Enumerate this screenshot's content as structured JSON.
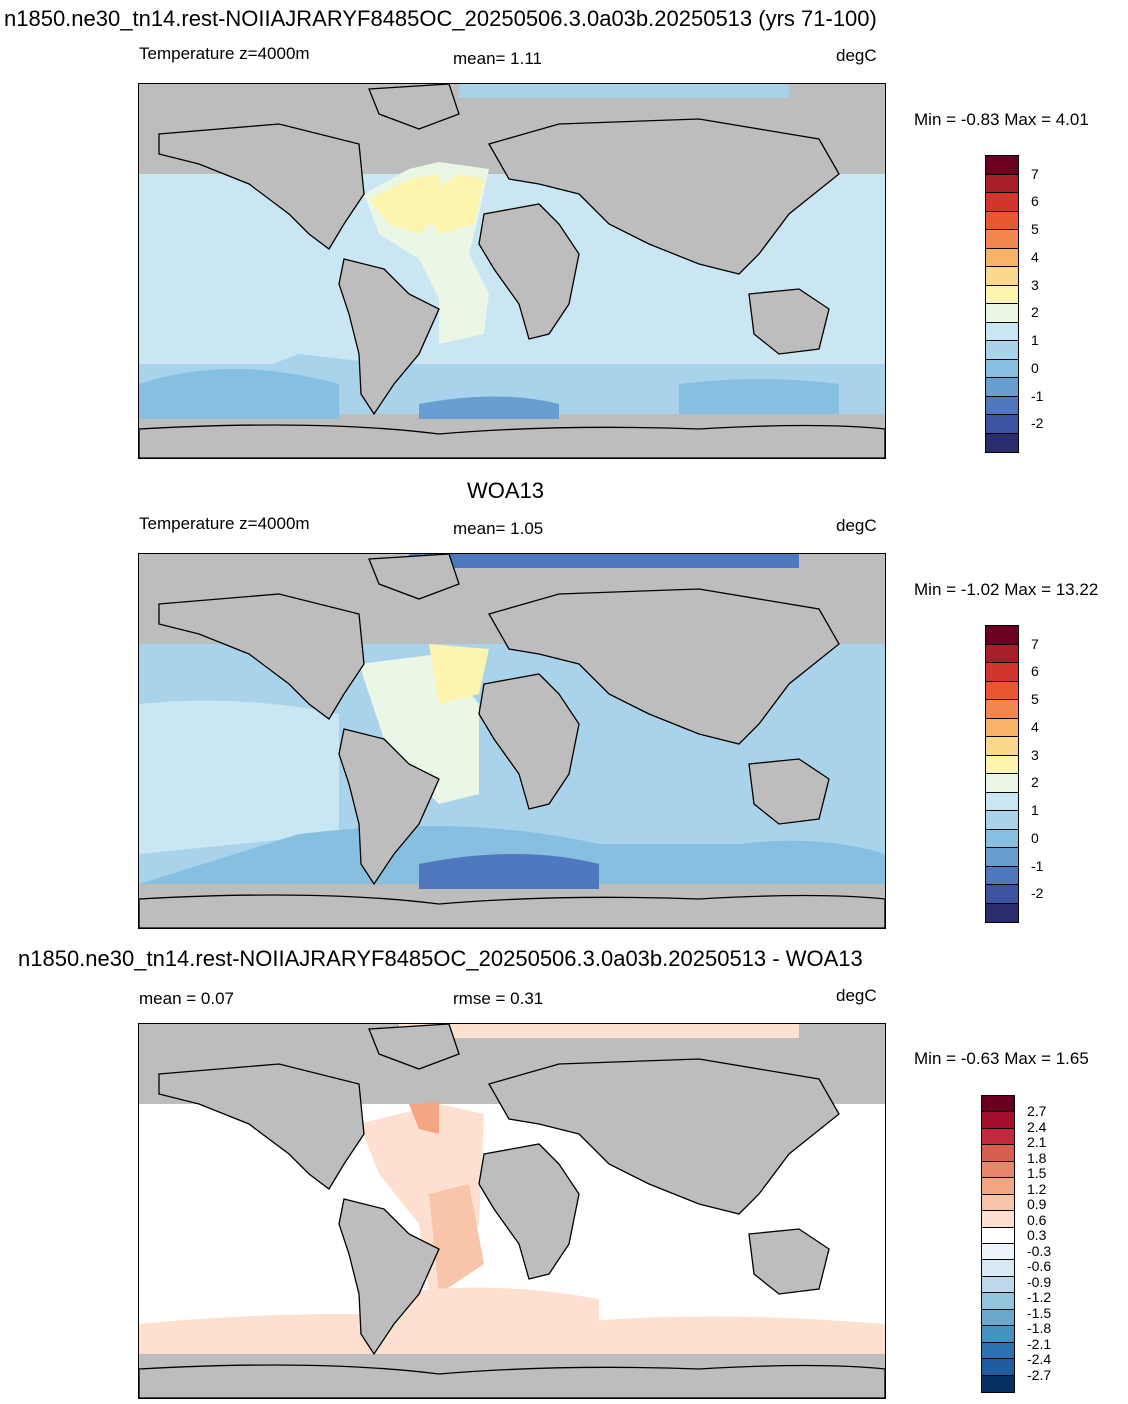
{
  "panel1": {
    "title": "n1850.ne30_tn14.rest-NOIIAJRARYF8485OC_20250506.3.0a03b.20250513 (yrs 71-100)",
    "left_label": "Temperature z=4000m",
    "center_label": "mean=   1.11",
    "units": "degC",
    "minmax": "Min =  -0.83 Max =    4.01"
  },
  "panel2": {
    "title": "WOA13",
    "left_label": "Temperature z=4000m",
    "center_label": "mean=   1.05",
    "units": "degC",
    "minmax": "Min =  -1.02 Max =  13.22"
  },
  "panel3": {
    "title": "n1850.ne30_tn14.rest-NOIIAJRARYF8485OC_20250506.3.0a03b.20250513 - WOA13",
    "left_label": "mean =    0.07",
    "center_label": "rmse =    0.31",
    "units": "degC",
    "minmax": "Min =  -0.63 Max =    1.65"
  },
  "colorbar_temp": {
    "colors": [
      "#6b0021",
      "#a81e2b",
      "#d1352b",
      "#e8572f",
      "#f3864e",
      "#f8b466",
      "#fbd98c",
      "#fdf5ae",
      "#eaf6e6",
      "#c9e6f2",
      "#a9d3ea",
      "#87bfe0",
      "#689fd0",
      "#4f78be",
      "#3d52a0",
      "#2a2c6b"
    ],
    "labels": [
      "7",
      "6",
      "5",
      "4",
      "3",
      "2",
      "1",
      "0",
      "-1",
      "-2"
    ]
  },
  "colorbar_diff": {
    "colors": [
      "#67001f",
      "#a50f2d",
      "#c4283c",
      "#d6604d",
      "#e8866a",
      "#f4a582",
      "#f8c5aa",
      "#fde0cf",
      "#ffffff",
      "#eef4f9",
      "#d9e9f3",
      "#bcd9ea",
      "#92c5de",
      "#6aa8d0",
      "#4393c3",
      "#2c72b1",
      "#1f5ca0",
      "#053061"
    ],
    "labels": [
      "2.7",
      "2.4",
      "2.1",
      "1.8",
      "1.5",
      "1.2",
      "0.9",
      "0.6",
      "0.3",
      "-0.3",
      "-0.6",
      "-0.9",
      "-1.2",
      "-1.5",
      "-1.8",
      "-2.1",
      "-2.4",
      "-2.7"
    ]
  }
}
